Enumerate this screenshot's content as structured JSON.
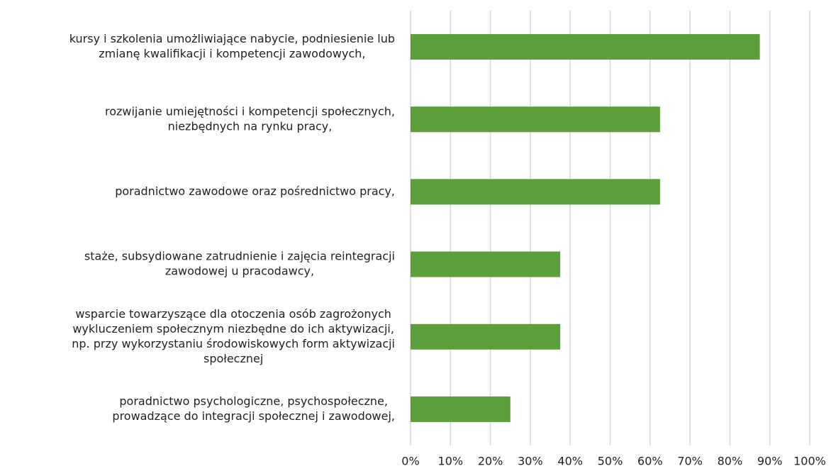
{
  "chart_data": {
    "type": "bar",
    "orientation": "horizontal",
    "categories": [
      [
        "kursy i szkolenia umożliwiające nabycie, podniesienie lub",
        "zmianę kwalifikacji i kompetencji zawodowych,"
      ],
      [
        "rozwijanie umiejętności i kompetencji społecznych,",
        "niezbędnych na rynku pracy,"
      ],
      [
        "poradnictwo zawodowe oraz pośrednictwo pracy,"
      ],
      [
        "staże, subsydiowane zatrudnienie i zajęcia reintegracji",
        "zawodowej u pracodawcy,"
      ],
      [
        "wsparcie towarzyszące dla otoczenia osób zagrożonych",
        "wykluczeniem społecznym niezbędne do ich aktywizacji,",
        "np. przy wykorzystaniu środowiskowych form aktywizacji",
        "społecznej"
      ],
      [
        "poradnictwo psychologiczne, psychospołeczne,",
        "prowadzące do integracji społecznej i zawodowej,"
      ]
    ],
    "values": [
      87.5,
      62.5,
      62.5,
      37.5,
      37.5,
      25
    ],
    "color": "#5b9f3a",
    "xlim": [
      0,
      100
    ],
    "xticks": [
      {
        "value": 0,
        "label": "0%"
      },
      {
        "value": 10,
        "label": "10%"
      },
      {
        "value": 20,
        "label": "20%"
      },
      {
        "value": 30,
        "label": "30%"
      },
      {
        "value": 40,
        "label": "40%"
      },
      {
        "value": 50,
        "label": "50%"
      },
      {
        "value": 60,
        "label": "60%"
      },
      {
        "value": 70,
        "label": "70%"
      },
      {
        "value": 80,
        "label": "80%"
      },
      {
        "value": 90,
        "label": "90%"
      },
      {
        "value": 100,
        "label": "100%"
      }
    ],
    "grid": true
  }
}
